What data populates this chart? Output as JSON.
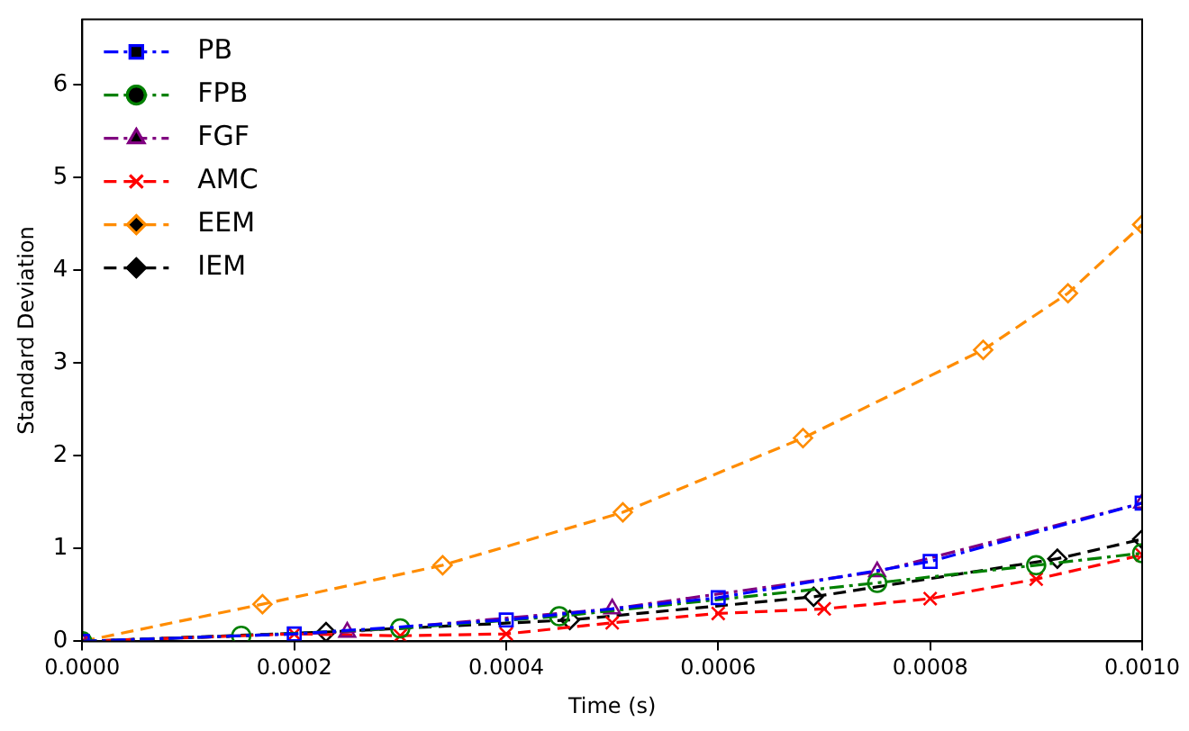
{
  "chart_data": {
    "type": "line",
    "xlabel": "Time (s)",
    "ylabel": "Standard Deviation",
    "xlim": [
      0,
      0.001
    ],
    "ylim": [
      0,
      6.7
    ],
    "xticks": [
      {
        "value": 0,
        "label": "0.0000"
      },
      {
        "value": 0.0002,
        "label": "0.0002"
      },
      {
        "value": 0.0004,
        "label": "0.0004"
      },
      {
        "value": 0.0006,
        "label": "0.0006"
      },
      {
        "value": 0.0008,
        "label": "0.0008"
      },
      {
        "value": 0.001,
        "label": "0.0010"
      }
    ],
    "yticks": [
      0,
      1,
      2,
      3,
      4,
      5,
      6
    ],
    "grid": false,
    "legend": "top left",
    "series": [
      {
        "name": "PB",
        "color": "#0000ff",
        "marker": "square",
        "line_style": "dashdot",
        "x": [
          0,
          0.0002,
          0.0004,
          0.0006,
          0.0008,
          0.001
        ],
        "values": [
          0,
          0.08,
          0.23,
          0.47,
          0.86,
          1.49
        ]
      },
      {
        "name": "FPB",
        "color": "#008000",
        "marker": "circle",
        "line_style": "dashdot",
        "x": [
          0,
          0.00015,
          0.0003,
          0.00045,
          0.00075,
          0.0009,
          0.001
        ],
        "values": [
          0,
          0.06,
          0.14,
          0.27,
          0.63,
          0.82,
          0.95
        ]
      },
      {
        "name": "FGF",
        "color": "#800080",
        "marker": "triangle",
        "line_style": "dashdot",
        "x": [
          0,
          0.00025,
          0.0005,
          0.00075,
          0.001
        ],
        "values": [
          0,
          0.1,
          0.35,
          0.75,
          1.49
        ]
      },
      {
        "name": "AMC",
        "color": "#ff0000",
        "marker": "cross",
        "line_style": "dashed",
        "x": [
          0,
          0.0002,
          0.0003,
          0.0004,
          0.0005,
          0.0006,
          0.0007,
          0.0008,
          0.0009,
          0.001
        ],
        "values": [
          0,
          0.08,
          0.06,
          0.08,
          0.2,
          0.3,
          0.35,
          0.46,
          0.67,
          0.93
        ]
      },
      {
        "name": "EEM",
        "color": "#ff8c00",
        "marker": "diamond",
        "line_style": "dashed",
        "x": [
          0,
          0.00017,
          0.00034,
          0.00051,
          0.00068,
          0.00085,
          0.00093,
          0.001
        ],
        "values": [
          0,
          0.4,
          0.82,
          1.39,
          2.19,
          3.14,
          3.75,
          4.49
        ]
      },
      {
        "name": "IEM",
        "color": "#000000",
        "marker": "diamond",
        "line_style": "dashed",
        "x": [
          0,
          0.00023,
          0.00046,
          0.00069,
          0.00092,
          0.001
        ],
        "values": [
          0,
          0.1,
          0.23,
          0.48,
          0.89,
          1.1
        ]
      }
    ]
  }
}
